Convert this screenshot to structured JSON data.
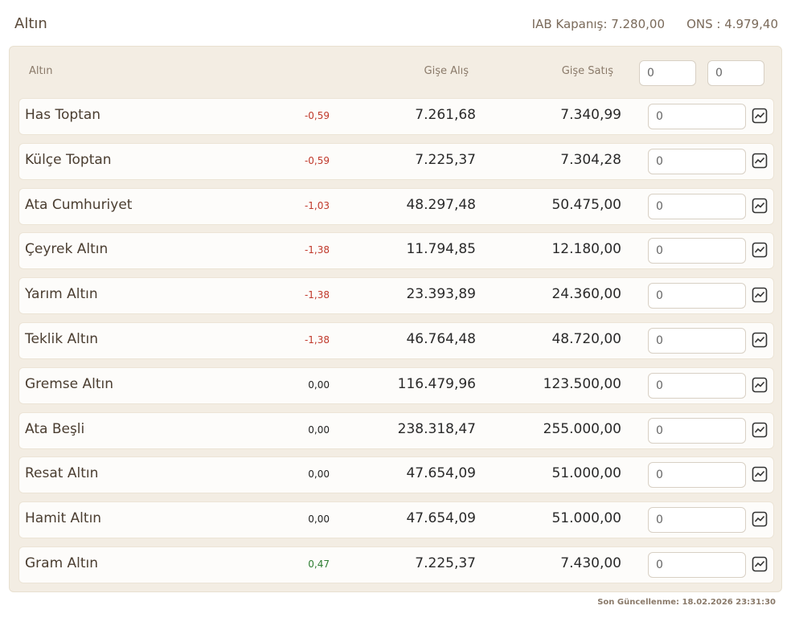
{
  "header": {
    "title": "Altın",
    "iab": "IAB Kapanış: 7.280,00",
    "ons": "ONS : 4.979,40"
  },
  "table": {
    "columns": [
      "Altın",
      "Gişe Alış",
      "Gişe Satış"
    ],
    "header_inputs": [
      "0",
      "0"
    ],
    "rows": [
      [
        "Has Toptan",
        "-0,59",
        "7.261,68",
        "7.340,99",
        "0"
      ],
      [
        "Külçe Toptan",
        "-0,59",
        "7.225,37",
        "7.304,28",
        "0"
      ],
      [
        "Ata Cumhuriyet",
        "-1,03",
        "48.297,48",
        "50.475,00",
        "0"
      ],
      [
        "Çeyrek Altın",
        "-1,38",
        "11.794,85",
        "12.180,00",
        "0"
      ],
      [
        "Yarım Altın",
        "-1,38",
        "23.393,89",
        "24.360,00",
        "0"
      ],
      [
        "Teklik Altın",
        "-1,38",
        "46.764,48",
        "48.720,00",
        "0"
      ],
      [
        "Gremse Altın",
        "0,00",
        "116.479,96",
        "123.500,00",
        "0"
      ],
      [
        "Ata Beşli",
        "0,00",
        "238.318,47",
        "255.000,00",
        "0"
      ],
      [
        "Resat Altın",
        "0,00",
        "47.654,09",
        "51.000,00",
        "0"
      ],
      [
        "Hamit Altın",
        "0,00",
        "47.654,09",
        "51.000,00",
        "0"
      ],
      [
        "Gram Altın",
        "0,47",
        "7.225,37",
        "7.430,00",
        "0"
      ]
    ]
  },
  "footer": {
    "updated": "Son Güncellenme: 18.02.2026 23:31:30"
  }
}
